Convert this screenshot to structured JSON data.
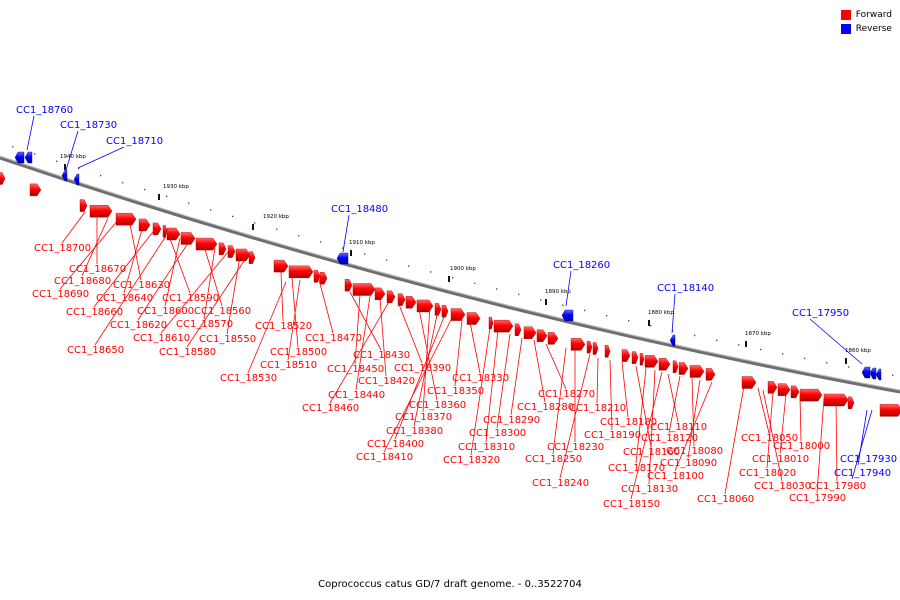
{
  "legend": {
    "forward_label": "Forward",
    "forward_color": "#ff0000",
    "reverse_label": "Reverse",
    "reverse_color": "#0000ff"
  },
  "caption": "Coprococcus catus GD/7 draft genome. - 0..3522704",
  "colors": {
    "backbone": "#808080",
    "forward": "#ff0000",
    "reverse": "#0000ff"
  },
  "scale_labels": [
    "1940 kbp",
    "1930 kbp",
    "1920 kbp",
    "1910 kbp",
    "1900 kbp",
    "1890 kbp",
    "1880 kbp",
    "1870 kbp",
    "1860 kbp"
  ],
  "reverse_genes": [
    "CC1_18760",
    "CC1_18730",
    "CC1_18710",
    "CC1_18480",
    "CC1_18260",
    "CC1_18140",
    "CC1_17950",
    "CC1_17930",
    "CC1_17940"
  ],
  "forward_genes": [
    "CC1_18700",
    "CC1_18670",
    "CC1_18680",
    "CC1_18690",
    "CC1_18630",
    "CC1_18640",
    "CC1_18660",
    "CC1_18590",
    "CC1_18600",
    "CC1_18620",
    "CC1_18560",
    "CC1_18570",
    "CC1_18610",
    "CC1_18550",
    "CC1_18650",
    "CC1_18580",
    "CC1_18520",
    "CC1_18470",
    "CC1_18500",
    "CC1_18510",
    "CC1_18430",
    "CC1_18530",
    "CC1_18450",
    "CC1_18390",
    "CC1_18420",
    "CC1_18440",
    "CC1_18460",
    "CC1_18360",
    "CC1_18370",
    "CC1_18380",
    "CC1_18400",
    "CC1_18410",
    "CC1_18330",
    "CC1_18350",
    "CC1_18270",
    "CC1_18280",
    "CC1_18290",
    "CC1_18300",
    "CC1_18310",
    "CC1_18320",
    "CC1_18230",
    "CC1_18250",
    "CC1_18240",
    "CC1_18210",
    "CC1_18180",
    "CC1_18190",
    "CC1_18160",
    "CC1_18170",
    "CC1_18130",
    "CC1_18150",
    "CC1_18110",
    "CC1_18120",
    "CC1_18080",
    "CC1_18090",
    "CC1_18100",
    "CC1_18050",
    "CC1_18000",
    "CC1_18010",
    "CC1_18020",
    "CC1_18030",
    "CC1_18060",
    "CC1_17980",
    "CC1_17990"
  ]
}
